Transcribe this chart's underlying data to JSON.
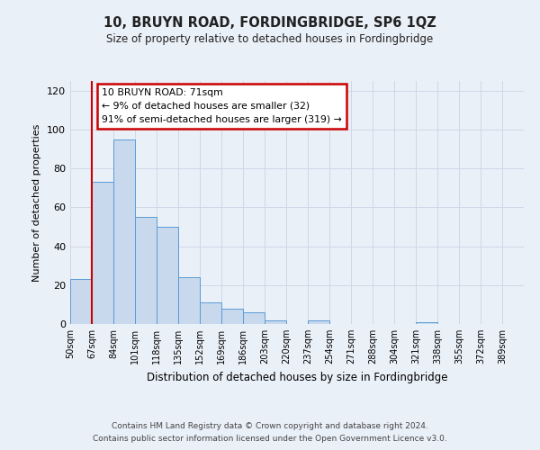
{
  "title": "10, BRUYN ROAD, FORDINGBRIDGE, SP6 1QZ",
  "subtitle": "Size of property relative to detached houses in Fordingbridge",
  "xlabel": "Distribution of detached houses by size in Fordingbridge",
  "ylabel": "Number of detached properties",
  "bin_labels": [
    "50sqm",
    "67sqm",
    "84sqm",
    "101sqm",
    "118sqm",
    "135sqm",
    "152sqm",
    "169sqm",
    "186sqm",
    "203sqm",
    "220sqm",
    "237sqm",
    "254sqm",
    "271sqm",
    "288sqm",
    "304sqm",
    "321sqm",
    "338sqm",
    "355sqm",
    "372sqm",
    "389sqm"
  ],
  "bar_values": [
    23,
    73,
    95,
    55,
    50,
    24,
    11,
    8,
    6,
    2,
    0,
    2,
    0,
    0,
    0,
    0,
    1,
    0,
    0,
    0,
    0
  ],
  "bar_color": "#c8d9ed",
  "bar_edge_color": "#5b9bd5",
  "red_line_x": 1,
  "annotation_text": "10 BRUYN ROAD: 71sqm\n← 9% of detached houses are smaller (32)\n91% of semi-detached houses are larger (319) →",
  "annotation_box_color": "#ffffff",
  "annotation_box_edge_color": "#cc0000",
  "ylim": [
    0,
    125
  ],
  "yticks": [
    0,
    20,
    40,
    60,
    80,
    100,
    120
  ],
  "grid_color": "#d0d8e8",
  "background_color": "#eaf0f8",
  "footer_line1": "Contains HM Land Registry data © Crown copyright and database right 2024.",
  "footer_line2": "Contains public sector information licensed under the Open Government Licence v3.0."
}
